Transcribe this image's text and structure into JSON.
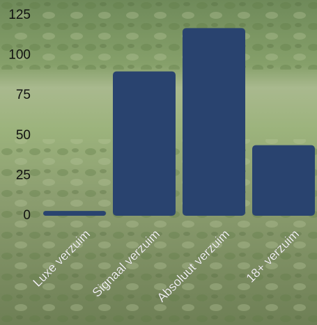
{
  "chart_data": {
    "type": "bar",
    "categories": [
      "Luxe verzuim",
      "Signaal verzuim",
      "Absoluut verzuim",
      "18+ verzuim"
    ],
    "values": [
      3,
      90,
      117,
      44
    ],
    "color": "#29436f",
    "ylim": [
      0,
      125
    ],
    "yticks": [
      0,
      25,
      50,
      75,
      100,
      125
    ],
    "grid": false
  }
}
